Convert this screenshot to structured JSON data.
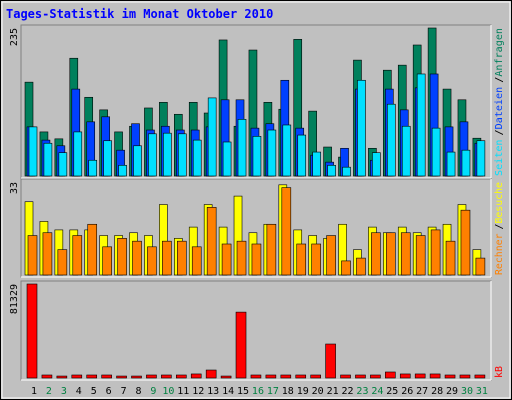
{
  "title": "Tages-Statistik im Monat Oktober 2010",
  "legend_separator": "/",
  "chart_data": [
    {
      "type": "bar",
      "ylim": [
        0,
        235
      ],
      "yticks": [
        235
      ],
      "series": [
        {
          "name": "Anfragen",
          "color": "#00805c",
          "values": [
            149,
            70,
            59,
            187,
            125,
            105,
            70,
            79,
            108,
            117,
            98,
            117,
            100,
            216,
            79,
            200,
            117,
            106,
            217,
            103,
            46,
            30,
            184,
            44,
            168,
            176,
            208,
            235,
            138,
            121,
            60
          ]
        },
        {
          "name": "Dateien",
          "color": "#0040ff",
          "values": [
            78,
            57,
            48,
            138,
            86,
            94,
            41,
            83,
            73,
            79,
            73,
            73,
            78,
            121,
            121,
            76,
            83,
            152,
            76,
            33,
            22,
            44,
            138,
            25,
            138,
            105,
            140,
            162,
            78,
            86,
            52
          ]
        },
        {
          "name": "Seiten",
          "color": "#00e0ff",
          "values": [
            78,
            52,
            37,
            70,
            25,
            56,
            17,
            48,
            67,
            68,
            67,
            57,
            124,
            54,
            90,
            63,
            73,
            81,
            65,
            38,
            17,
            14,
            152,
            37,
            114,
            79,
            162,
            76,
            38,
            41,
            56
          ]
        }
      ]
    },
    {
      "type": "bar",
      "ylim": [
        0,
        33
      ],
      "yticks": [
        33
      ],
      "series": [
        {
          "name": "Besuche",
          "color": "#ffff00",
          "values": [
            26,
            19,
            16,
            16,
            16,
            14,
            14,
            15,
            14,
            25,
            13,
            17,
            25,
            17,
            28,
            15,
            18,
            32,
            16,
            14,
            13,
            18,
            9,
            17,
            15,
            17,
            15,
            17,
            18,
            25,
            9
          ]
        },
        {
          "name": "Rechner",
          "color": "#ff8000",
          "values": [
            14,
            15,
            9,
            14,
            18,
            10,
            13,
            12,
            10,
            12,
            12,
            10,
            24,
            11,
            12,
            11,
            18,
            31,
            11,
            11,
            14,
            5,
            6,
            15,
            15,
            15,
            14,
            16,
            12,
            23,
            6
          ]
        }
      ]
    },
    {
      "type": "bar",
      "ylim": [
        0,
        81329
      ],
      "yticks": [
        81329
      ],
      "categories": [
        "1",
        "2",
        "3",
        "4",
        "5",
        "6",
        "7",
        "8",
        "9",
        "10",
        "11",
        "12",
        "13",
        "14",
        "15",
        "16",
        "17",
        "18",
        "19",
        "20",
        "21",
        "22",
        "23",
        "24",
        "25",
        "26",
        "27",
        "28",
        "29",
        "30",
        "31"
      ],
      "label_colors": [
        "#000",
        "#008040",
        "#008040",
        "#000",
        "#000",
        "#000",
        "#000",
        "#000",
        "#008040",
        "#008040",
        "#000",
        "#000",
        "#000",
        "#000",
        "#000",
        "#008040",
        "#008040",
        "#000",
        "#000",
        "#000",
        "#000",
        "#000",
        "#008040",
        "#008040",
        "#000",
        "#000",
        "#000",
        "#000",
        "#000",
        "#008040",
        "#008040"
      ],
      "series": [
        {
          "name": "kB",
          "color": "#ff0000",
          "values": [
            81329,
            2600,
            1700,
            2600,
            2600,
            2600,
            1700,
            1700,
            2600,
            2600,
            2600,
            3500,
            6900,
            1700,
            57000,
            2600,
            2600,
            2600,
            2600,
            2600,
            29400,
            2600,
            2600,
            2600,
            5200,
            3500,
            3500,
            3500,
            2600,
            2600,
            2600
          ]
        }
      ]
    }
  ]
}
